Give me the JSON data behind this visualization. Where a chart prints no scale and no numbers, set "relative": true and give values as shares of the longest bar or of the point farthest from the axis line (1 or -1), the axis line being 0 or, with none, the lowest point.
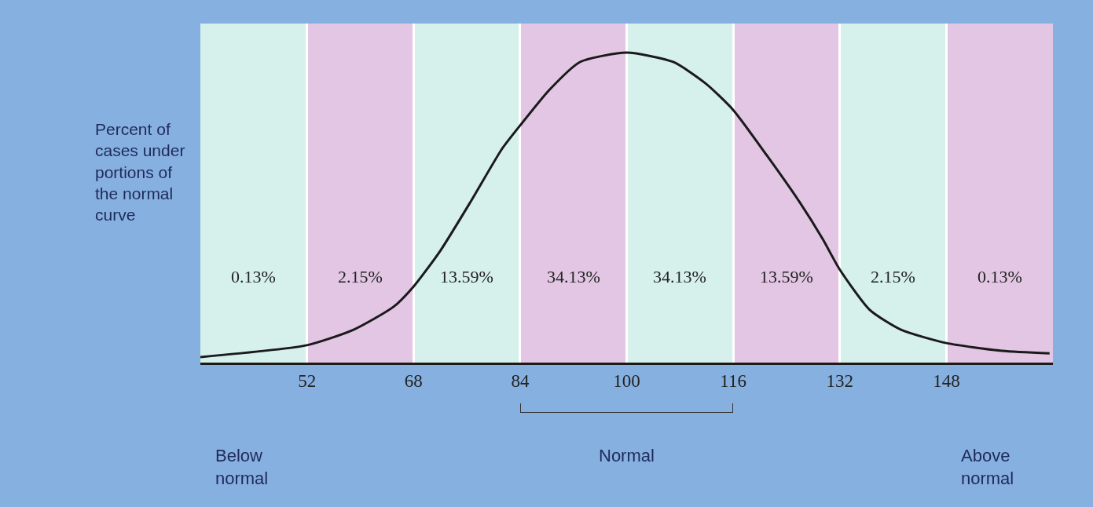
{
  "chart_data": {
    "type": "line",
    "relative": true,
    "ylabel": "Percent of cases under portions of the normal curve",
    "x": [
      36,
      52,
      59,
      65,
      68,
      72,
      76.6,
      81.3,
      84,
      88.4,
      93,
      100,
      107,
      111.9,
      116,
      121,
      125.9,
      129.4,
      132,
      136.5,
      141.2,
      148,
      156.4,
      163.5
    ],
    "series": [
      {
        "color": "#1a1a1a",
        "values": [
          0.018,
          0.056,
          0.106,
          0.18,
          0.245,
          0.36,
          0.52,
          0.69,
          0.765,
          0.88,
          0.97,
          1,
          0.97,
          0.9,
          0.815,
          0.67,
          0.52,
          0.4,
          0.3,
          0.17,
          0.106,
          0.063,
          0.038,
          0.03
        ]
      }
    ],
    "xlim": [
      36,
      164
    ],
    "xticks": [
      52,
      68,
      84,
      100,
      116,
      132,
      148
    ],
    "grid": "x",
    "marker": "none",
    "line_style": "solid",
    "bands": [
      {
        "axis": "x",
        "from": 52,
        "to": 68,
        "color": "#e6b8e0"
      },
      {
        "axis": "x",
        "from": 84,
        "to": 100,
        "color": "#e6b8e0"
      },
      {
        "axis": "x",
        "from": 116,
        "to": 132,
        "color": "#e6b8e0"
      },
      {
        "axis": "x",
        "from": 148,
        "to": 164,
        "color": "#e6b8e0"
      }
    ],
    "annotations": [
      "0.13%",
      "2.15%",
      "13.59%",
      "34.13%",
      "34.13%",
      "13.59%",
      "2.15%",
      "0.13%",
      "Below normal",
      "Normal",
      "Above normal"
    ]
  }
}
